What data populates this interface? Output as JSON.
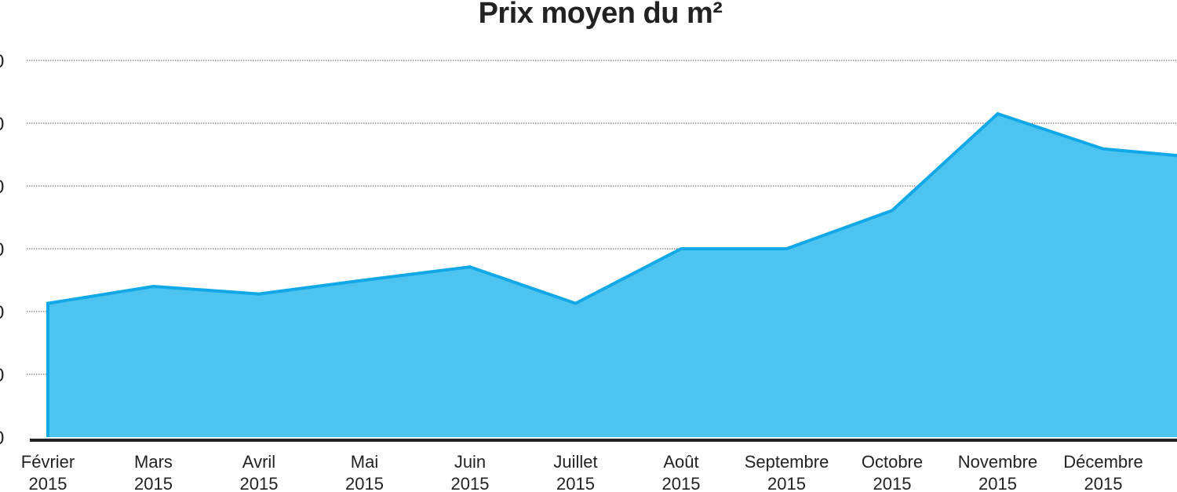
{
  "chart_data": {
    "type": "area",
    "title": "Prix moyen du m²",
    "xlabel": "",
    "ylabel": "",
    "y_tick_labels_visible": [
      "0",
      "0",
      "0",
      "0",
      "0",
      "0",
      "0"
    ],
    "y_note": "y values in gridline steps; tick labels are cut off at the left edge",
    "ylim": [
      0,
      6
    ],
    "grid": true,
    "categories": [
      [
        "Février",
        "2015"
      ],
      [
        "Mars",
        "2015"
      ],
      [
        "Avril",
        "2015"
      ],
      [
        "Mai",
        "2015"
      ],
      [
        "Juin",
        "2015"
      ],
      [
        "Juillet",
        "2015"
      ],
      [
        "Août",
        "2015"
      ],
      [
        "Septembre",
        "2015"
      ],
      [
        "Octobre",
        "2015"
      ],
      [
        "Novembre",
        "2015"
      ],
      [
        "Décembre",
        "2015"
      ],
      [
        "",
        ""
      ]
    ],
    "values": [
      2.13,
      2.4,
      2.28,
      2.5,
      2.71,
      2.13,
      3.0,
      3.0,
      3.61,
      5.15,
      4.59,
      4.44
    ],
    "colors": {
      "fill": "#4dc4f0",
      "line": "#12a8e8",
      "axis": "#222222",
      "grid": "#555555"
    }
  }
}
